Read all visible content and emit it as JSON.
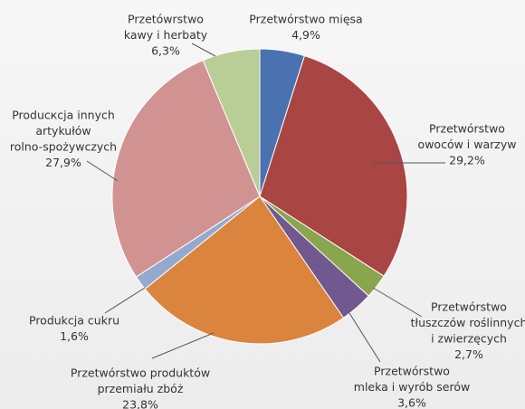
{
  "chart_data": {
    "type": "pie",
    "categories": [
      [
        "Przetwórstwo mięsa"
      ],
      [
        "Przetwórstwo",
        "owoców i warzyw"
      ],
      [
        "Przetwórstwo",
        "tłuszczów roślinnych",
        "i zwierzęcych"
      ],
      [
        "Przetwórstwo",
        "mleka i wyrób serów"
      ],
      [
        "Przetwórstwo produktów",
        "przemiału zbóż"
      ],
      [
        "Produkcja cukru"
      ],
      [
        "Producкcja innych",
        "artykułów",
        "rolno-spożywczych"
      ],
      [
        "Przetówrstwo",
        "kawy i herbaty"
      ]
    ],
    "values": [
      4.9,
      29.2,
      2.7,
      3.6,
      23.8,
      1.6,
      27.9,
      6.3
    ],
    "value_labels": [
      "4,9%",
      "29,2%",
      "2,7%",
      "3,6%",
      "23,8%",
      "1,6%",
      "27,9%",
      "6,3%"
    ],
    "colors": [
      "#4a72b0",
      "#a94543",
      "#89a54e",
      "#71588f",
      "#db843d",
      "#93a9cf",
      "#d19392",
      "#b9cd96"
    ]
  }
}
